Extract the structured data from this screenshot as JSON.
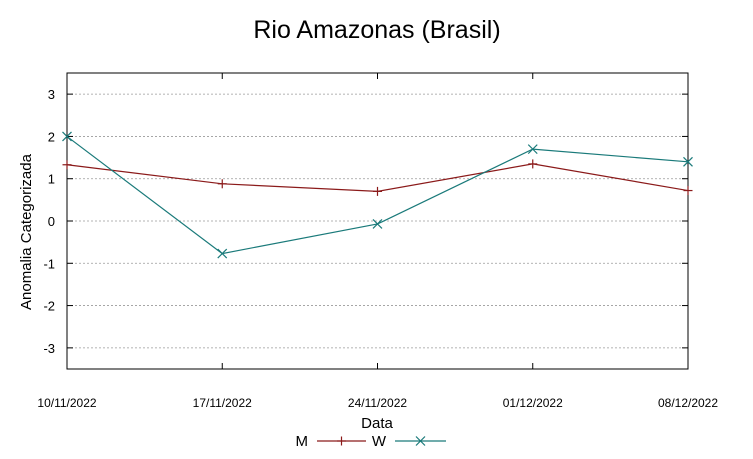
{
  "chart_data": {
    "type": "line",
    "title": "Rio Amazonas (Brasil)",
    "xlabel": "Data",
    "ylabel": "Anomalia Categorizada",
    "categories": [
      "10/11/2022",
      "17/11/2022",
      "24/11/2022",
      "01/12/2022",
      "08/12/2022"
    ],
    "yticks": [
      "3",
      "2",
      "1",
      "0",
      "-1",
      "-2",
      "-3"
    ],
    "ylim": [
      -3.5,
      3.5
    ],
    "grid": true,
    "legend_position": "bottom",
    "series": [
      {
        "name": "M",
        "color": "#8b1a1a",
        "marker": "plus",
        "values": [
          1.33,
          0.88,
          0.7,
          1.35,
          0.72
        ]
      },
      {
        "name": "W",
        "color": "#1a7a7a",
        "marker": "cross",
        "values": [
          2.0,
          -0.77,
          -0.07,
          1.7,
          1.4
        ]
      }
    ]
  }
}
